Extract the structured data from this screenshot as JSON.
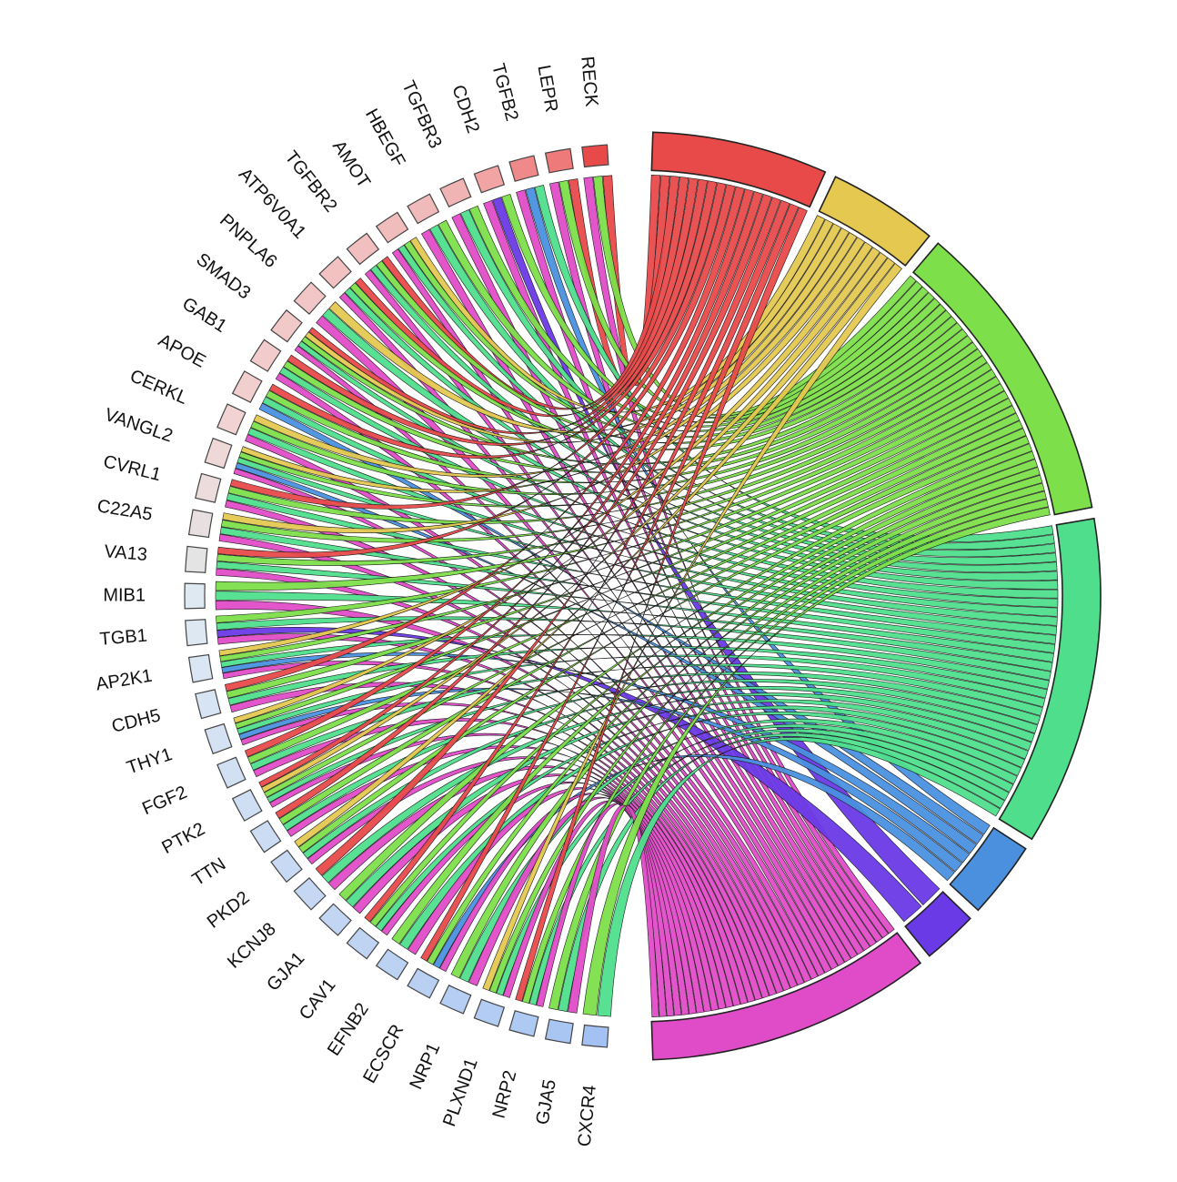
{
  "chart_data": {
    "type": "chord",
    "title": "",
    "genes": [
      {
        "name": "RECK",
        "color": "#e84a4a"
      },
      {
        "name": "LEPR",
        "color": "#ee7a7a"
      },
      {
        "name": "TGFB2",
        "color": "#f08a8a"
      },
      {
        "name": "CDH2",
        "color": "#f2a4a4"
      },
      {
        "name": "TGFBR3",
        "color": "#f0b4b4"
      },
      {
        "name": "HBEGF",
        "color": "#f1baba"
      },
      {
        "name": "AMOT",
        "color": "#f1bcbc"
      },
      {
        "name": "TGFBR2",
        "color": "#f1bfbf"
      },
      {
        "name": "ATP6V0A1",
        "color": "#f2c2c2"
      },
      {
        "name": "PNPLA6",
        "color": "#f2c6c6"
      },
      {
        "name": "SMAD3",
        "color": "#f2c9c9"
      },
      {
        "name": "GAB1",
        "color": "#f2cccc"
      },
      {
        "name": "APOE",
        "color": "#f2cfcf"
      },
      {
        "name": "CERKL",
        "color": "#f1d3d3"
      },
      {
        "name": "VANGL2",
        "color": "#efd8d8"
      },
      {
        "name": "CVRL1",
        "color": "#ecdcdc"
      },
      {
        "name": "C22A5",
        "color": "#e8e0e0"
      },
      {
        "name": "VA13",
        "color": "#e4e4e4"
      },
      {
        "name": "MIB1",
        "color": "#dfe9f2"
      },
      {
        "name": "TGB1",
        "color": "#dde8f3"
      },
      {
        "name": "AP2K1",
        "color": "#dae6f3"
      },
      {
        "name": "CDH5",
        "color": "#d7e4f3"
      },
      {
        "name": "THY1",
        "color": "#d4e2f3"
      },
      {
        "name": "FGF2",
        "color": "#d1e0f3"
      },
      {
        "name": "PTK2",
        "color": "#cedef3"
      },
      {
        "name": "TTN",
        "color": "#cbdcf3"
      },
      {
        "name": "PKD2",
        "color": "#c8daf3"
      },
      {
        "name": "KCNJ8",
        "color": "#c5d8f3"
      },
      {
        "name": "GJA1",
        "color": "#c2d6f3"
      },
      {
        "name": "CAV1",
        "color": "#bfd4f3"
      },
      {
        "name": "EFNB2",
        "color": "#bcd2f3"
      },
      {
        "name": "ECSCR",
        "color": "#b9d0f3"
      },
      {
        "name": "NRP1",
        "color": "#b6cef3"
      },
      {
        "name": "PLXND1",
        "color": "#b2ccf3"
      },
      {
        "name": "NRP2",
        "color": "#aecaf3"
      },
      {
        "name": "GJA5",
        "color": "#a9c6f3"
      },
      {
        "name": "CXCR4",
        "color": "#a3c2f3"
      }
    ],
    "categories": [
      {
        "color": "#e84a4a",
        "links": 16
      },
      {
        "color": "#e4c850",
        "links": 10
      },
      {
        "color": "#7ddf4a",
        "links": 28
      },
      {
        "color": "#4fdf8c",
        "links": 30
      },
      {
        "color": "#4a90df",
        "links": 7
      },
      {
        "color": "#6a3ae6",
        "links": 5
      },
      {
        "color": "#e04cc8",
        "links": 26
      }
    ],
    "links_by_gene": [
      [
        0,
        2,
        6
      ],
      [
        0,
        2,
        6
      ],
      [
        3,
        4,
        6
      ],
      [
        2,
        5,
        6
      ],
      [
        2,
        3,
        6
      ],
      [
        2,
        3,
        6
      ],
      [
        1,
        2,
        3,
        6
      ],
      [
        0,
        2,
        3,
        6
      ],
      [
        0,
        2,
        3,
        6
      ],
      [
        1,
        3,
        6
      ],
      [
        0,
        1,
        2,
        3,
        6
      ],
      [
        0,
        2,
        3,
        6
      ],
      [
        0,
        2,
        3,
        4
      ],
      [
        1,
        2,
        3,
        6
      ],
      [
        1,
        2,
        3,
        4,
        6
      ],
      [
        0,
        2,
        3,
        6
      ],
      [
        1,
        2,
        3,
        6
      ],
      [
        0,
        2,
        3,
        6
      ],
      [
        2,
        3,
        6
      ],
      [
        2,
        3,
        5,
        6
      ],
      [
        1,
        2,
        3,
        4,
        6
      ],
      [
        0,
        2,
        3,
        6
      ],
      [
        1,
        2,
        3,
        4,
        6
      ],
      [
        0,
        2,
        3,
        6
      ],
      [
        0,
        1,
        2,
        3,
        6
      ],
      [
        0,
        2,
        3,
        6
      ],
      [
        1,
        2,
        3,
        6
      ],
      [
        0,
        3,
        6
      ],
      [
        2,
        3,
        6
      ],
      [
        0,
        2,
        3,
        6
      ],
      [
        2,
        3,
        6
      ],
      [
        0,
        2,
        4,
        6
      ],
      [
        2,
        3,
        6
      ],
      [
        1,
        2,
        3,
        6
      ],
      [
        0,
        2,
        3,
        6
      ],
      [
        2,
        3,
        6
      ],
      [
        2,
        3
      ]
    ]
  }
}
